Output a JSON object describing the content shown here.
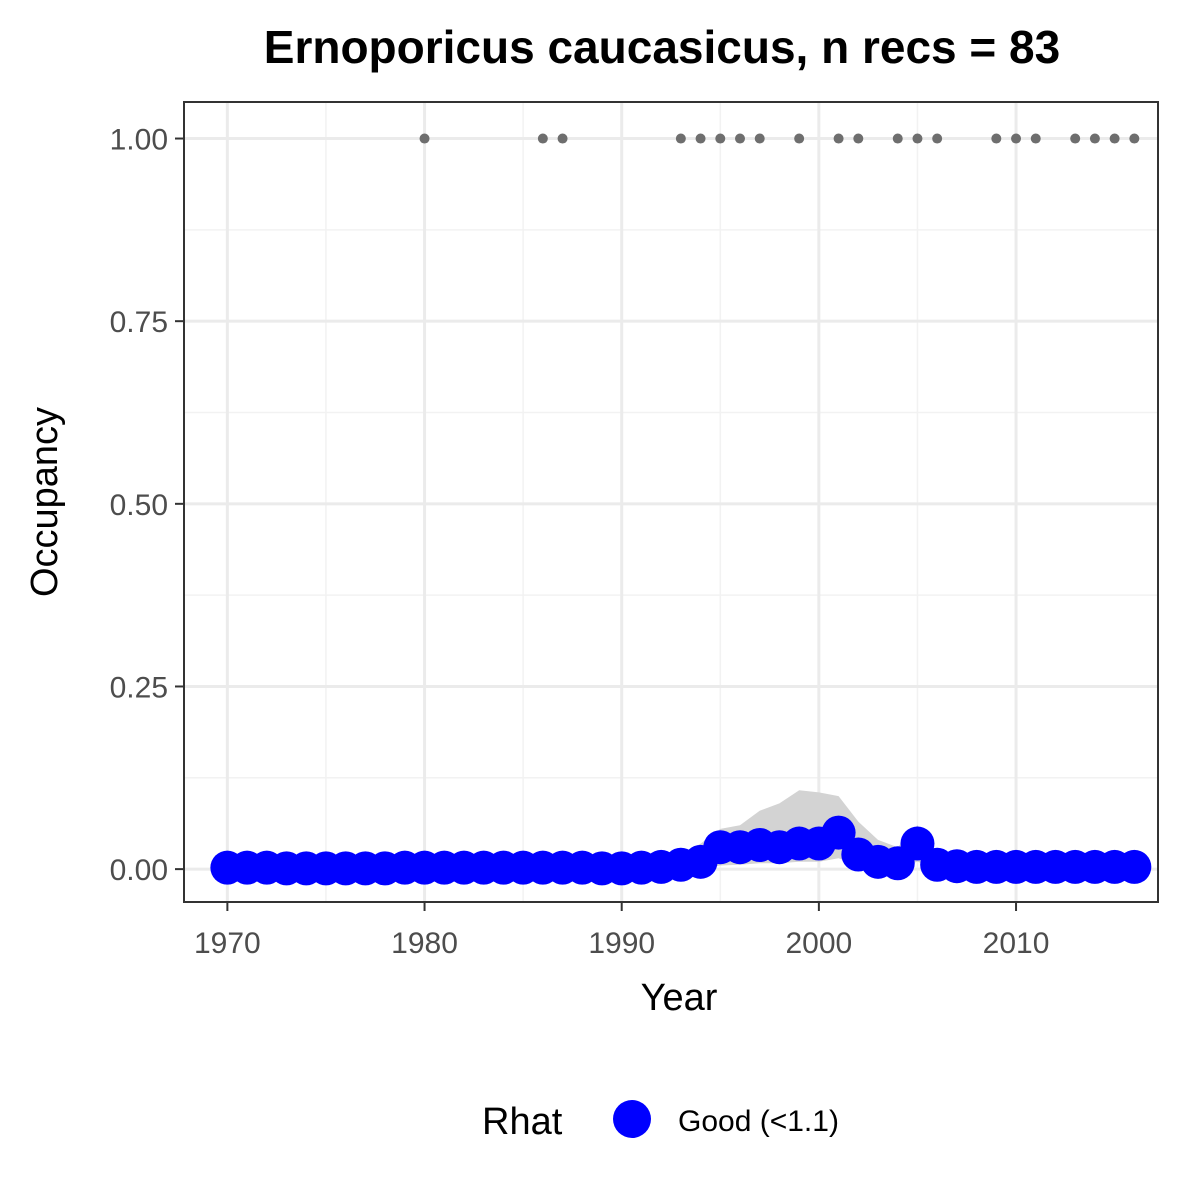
{
  "chart_data": {
    "type": "line",
    "title": "Ernoporicus caucasicus, n recs = 83",
    "xlabel": "Year",
    "ylabel": "Occupancy",
    "xlim": [
      1967.8,
      2017.2
    ],
    "ylim": [
      -0.045,
      1.05
    ],
    "x_ticks": [
      1970,
      1980,
      1990,
      2000,
      2010
    ],
    "y_ticks": [
      0,
      0.25,
      0.5,
      0.75,
      1.0
    ],
    "y_tick_labels": [
      "0.00",
      "0.25",
      "0.50",
      "0.75",
      "1.00"
    ],
    "grid": true,
    "legend": {
      "position": "bottom",
      "title": "Rhat",
      "entries": [
        {
          "label": "Good (<1.1)",
          "color": "#0000ff"
        }
      ]
    },
    "series": [
      {
        "name": "Good (<1.1)",
        "color": "#0000ff",
        "x": [
          1970,
          1971,
          1972,
          1973,
          1974,
          1975,
          1976,
          1977,
          1978,
          1979,
          1980,
          1981,
          1982,
          1983,
          1984,
          1985,
          1986,
          1987,
          1988,
          1989,
          1990,
          1991,
          1992,
          1993,
          1994,
          1995,
          1996,
          1997,
          1998,
          1999,
          2000,
          2001,
          2002,
          2003,
          2004,
          2005,
          2006,
          2007,
          2008,
          2009,
          2010,
          2011,
          2012,
          2013,
          2014,
          2015,
          2016
        ],
        "y": [
          0.002,
          0.002,
          0.002,
          0.001,
          0.001,
          0.001,
          0.001,
          0.001,
          0.001,
          0.002,
          0.002,
          0.002,
          0.002,
          0.002,
          0.002,
          0.002,
          0.002,
          0.002,
          0.002,
          0.001,
          0.001,
          0.002,
          0.003,
          0.006,
          0.01,
          0.03,
          0.03,
          0.033,
          0.03,
          0.035,
          0.035,
          0.05,
          0.02,
          0.01,
          0.008,
          0.035,
          0.006,
          0.004,
          0.003,
          0.003,
          0.003,
          0.003,
          0.003,
          0.003,
          0.003,
          0.003,
          0.003
        ]
      }
    ],
    "ci_band": {
      "x": [
        1970,
        1971,
        1972,
        1973,
        1974,
        1975,
        1976,
        1977,
        1978,
        1979,
        1980,
        1981,
        1982,
        1983,
        1984,
        1985,
        1986,
        1987,
        1988,
        1989,
        1990,
        1991,
        1992,
        1993,
        1994,
        1995,
        1996,
        1997,
        1998,
        1999,
        2000,
        2001,
        2002,
        2003,
        2004,
        2005,
        2006,
        2007,
        2008,
        2009,
        2010,
        2011,
        2012,
        2013,
        2014,
        2015,
        2016
      ],
      "lower": [
        0,
        0,
        0,
        0,
        0,
        0,
        0,
        0,
        0,
        0,
        0,
        0,
        0,
        0,
        0,
        0,
        0,
        0,
        0,
        0,
        0,
        0,
        0,
        0,
        0,
        0.005,
        0.006,
        0.008,
        0.008,
        0.01,
        0.01,
        0.015,
        0.005,
        0.002,
        0.002,
        0.01,
        0.001,
        0,
        0,
        0,
        0,
        0,
        0,
        0,
        0,
        0,
        0
      ],
      "upper": [
        0.01,
        0.01,
        0.01,
        0.01,
        0.01,
        0.01,
        0.01,
        0.01,
        0.01,
        0.01,
        0.01,
        0.01,
        0.01,
        0.01,
        0.01,
        0.01,
        0.01,
        0.01,
        0.01,
        0.01,
        0.01,
        0.01,
        0.015,
        0.02,
        0.035,
        0.055,
        0.06,
        0.08,
        0.09,
        0.108,
        0.105,
        0.1,
        0.065,
        0.04,
        0.03,
        0.06,
        0.02,
        0.015,
        0.015,
        0.015,
        0.015,
        0.015,
        0.015,
        0.015,
        0.015,
        0.015,
        0.015
      ],
      "color": "#d3d3d3"
    },
    "records": {
      "x": [
        1980,
        1986,
        1987,
        1993,
        1994,
        1995,
        1996,
        1997,
        1999,
        2001,
        2002,
        2004,
        2005,
        2006,
        2009,
        2010,
        2011,
        2013,
        2014,
        2015,
        2016
      ],
      "y": 1.0,
      "color": "#6e6e6e"
    }
  }
}
